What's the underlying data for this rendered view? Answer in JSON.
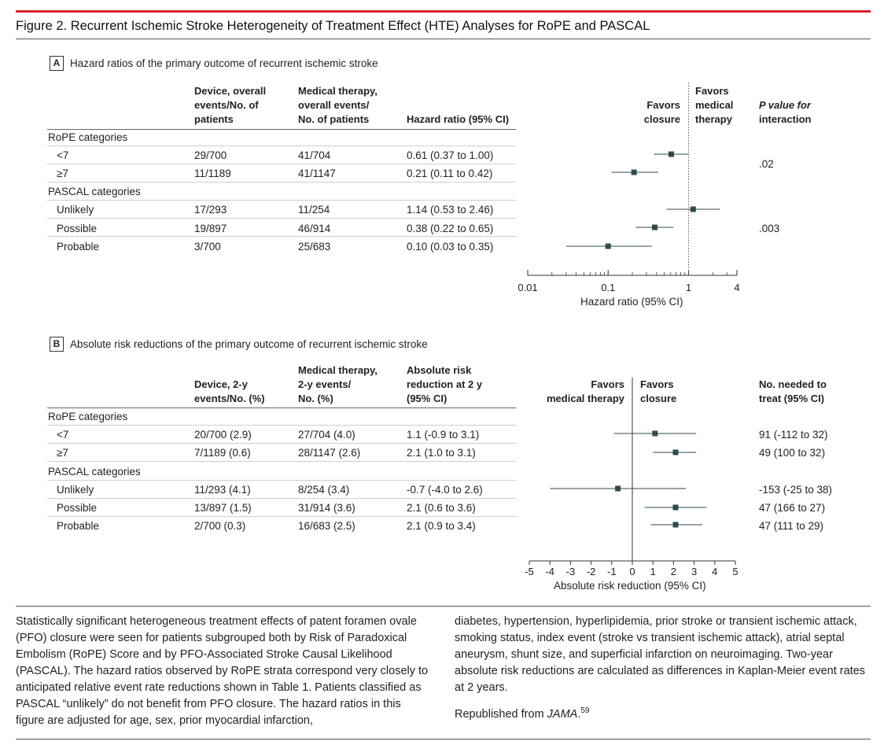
{
  "figure_title": "Figure 2. Recurrent Ischemic Stroke Heterogeneity of Treatment Effect (HTE) Analyses for RoPE and PASCAL",
  "panel_a": {
    "letter": "A",
    "title": "Hazard ratios of the primary outcome of recurrent ischemic stroke",
    "headers": {
      "device": [
        "Device, overall",
        "events/No. of",
        "patients"
      ],
      "medical": [
        "Medical therapy,",
        "overall events/",
        "No. of patients"
      ],
      "hr": [
        "Hazard ratio (95% CI)"
      ],
      "favors_closure": [
        "Favors",
        "closure"
      ],
      "favors_medical": [
        "Favors",
        "medical",
        "therapy"
      ],
      "p_value": [
        "P value for",
        "interaction"
      ]
    },
    "groups": [
      {
        "label": "RoPE categories",
        "p_value": ".02",
        "rows": [
          {
            "label": "<7",
            "device": "29/700",
            "medical": "41/704",
            "hr_text": "0.61 (0.37 to 1.00)"
          },
          {
            "label": "≥7",
            "device": "11/1189",
            "medical": "41/1147",
            "hr_text": "0.21 (0.11 to 0.42)"
          }
        ]
      },
      {
        "label": "PASCAL categories",
        "p_value": ".003",
        "rows": [
          {
            "label": "Unlikely",
            "device": "17/293",
            "medical": "11/254",
            "hr_text": "1.14 (0.53 to 2.46)"
          },
          {
            "label": "Possible",
            "device": "19/897",
            "medical": "46/914",
            "hr_text": "0.38 (0.22 to 0.65)"
          },
          {
            "label": "Probable",
            "device": "3/700",
            "medical": "25/683",
            "hr_text": "0.10 (0.03 to 0.35)"
          }
        ]
      }
    ]
  },
  "panel_b": {
    "letter": "B",
    "title": "Absolute risk reductions of the primary outcome of recurrent ischemic stroke",
    "headers": {
      "device": [
        "Device, 2-y",
        "events/No. (%)"
      ],
      "medical": [
        "Medical therapy,",
        "2-y events/",
        "No. (%)"
      ],
      "arr": [
        "Absolute risk",
        "reduction at 2 y",
        "(95% CI)"
      ],
      "favors_medical": [
        "Favors",
        "medical therapy"
      ],
      "favors_closure": [
        "Favors",
        "closure"
      ],
      "nnt": [
        "No. needed to",
        "treat (95% CI)"
      ]
    },
    "groups": [
      {
        "label": "RoPE categories",
        "rows": [
          {
            "label": "<7",
            "device": "20/700 (2.9)",
            "medical": "27/704 (4.0)",
            "arr_text": "1.1 (-0.9 to 3.1)",
            "nnt": "91 (-112 to 32)"
          },
          {
            "label": "≥7",
            "device": "7/1189 (0.6)",
            "medical": "28/1147 (2.6)",
            "arr_text": "2.1 (1.0 to 3.1)",
            "nnt": "49 (100 to 32)"
          }
        ]
      },
      {
        "label": "PASCAL categories",
        "rows": [
          {
            "label": "Unlikely",
            "device": "11/293 (4.1)",
            "medical": "8/254 (3.4)",
            "arr_text": "-0.7 (-4.0 to 2.6)",
            "nnt": "-153 (-25 to 38)"
          },
          {
            "label": "Possible",
            "device": "13/897 (1.5)",
            "medical": "31/914 (3.6)",
            "arr_text": "2.1 (0.6 to 3.6)",
            "nnt": "47 (166 to 27)"
          },
          {
            "label": "Probable",
            "device": "2/700 (0.3)",
            "medical": "16/683 (2.5)",
            "arr_text": "2.1 (0.9 to 3.4)",
            "nnt": "47 (111 to 29)"
          }
        ]
      }
    ]
  },
  "chart_data": [
    {
      "type": "scatter",
      "subtype": "forest",
      "xlabel": "Hazard ratio (95% CI)",
      "xscale": "log",
      "xlim": [
        0.01,
        4
      ],
      "xticks": [
        0.01,
        0.1,
        1,
        4
      ],
      "xtick_labels": [
        "0.01",
        "0.1",
        "1",
        "4"
      ],
      "reference_line": 1,
      "reference_style": "dotted",
      "categories": [
        "<7",
        "≥7",
        "Unlikely",
        "Possible",
        "Probable"
      ],
      "estimate": [
        0.61,
        0.21,
        1.14,
        0.38,
        0.1
      ],
      "lower": [
        0.37,
        0.11,
        0.53,
        0.22,
        0.03
      ],
      "upper": [
        1.0,
        0.42,
        2.46,
        0.65,
        0.35
      ],
      "color": "#2f4a4c"
    },
    {
      "type": "scatter",
      "subtype": "forest",
      "xlabel": "Absolute risk reduction (95% CI)",
      "xlim": [
        -5,
        5
      ],
      "xticks": [
        -5,
        -4,
        -3,
        -2,
        -1,
        0,
        1,
        2,
        3,
        4,
        5
      ],
      "xtick_labels": [
        "-5",
        "-4",
        "-3",
        "-2",
        "-1",
        "0",
        "1",
        "2",
        "3",
        "4",
        "5"
      ],
      "reference_line": 0,
      "reference_style": "solid",
      "categories": [
        "<7",
        "≥7",
        "Unlikely",
        "Possible",
        "Probable"
      ],
      "estimate": [
        1.1,
        2.1,
        -0.7,
        2.1,
        2.1
      ],
      "lower": [
        -0.9,
        1.0,
        -4.0,
        0.6,
        0.9
      ],
      "upper": [
        3.1,
        3.1,
        2.6,
        3.6,
        3.4
      ],
      "color": "#2f4a4c"
    }
  ],
  "caption": {
    "left": "Statistically significant heterogeneous treatment effects of patent foramen ovale (PFO) closure were seen for patients subgrouped both by Risk of Paradoxical Embolism (RoPE) Score and by PFO-Associated Stroke Causal Likelihood (PASCAL). The hazard ratios observed by RoPE strata correspond very closely to anticipated relative event rate reductions shown in Table 1. Patients classified as PASCAL “unlikely” do not benefit from PFO closure. The hazard ratios in this figure are adjusted for age, sex, prior myocardial infarction,",
    "right": "diabetes, hypertension, hyperlipidemia, prior stroke or transient ischemic attack, smoking status, index event (stroke vs transient ischemic attack), atrial septal aneurysm, shunt size, and superficial infarction on neuroimaging. Two-year absolute risk reductions are calculated as differences in Kaplan-Meier event rates at 2 years.",
    "republished_prefix": "Republished from ",
    "republished_source": "JAMA",
    "republished_suffix": ".",
    "reference": "59"
  }
}
